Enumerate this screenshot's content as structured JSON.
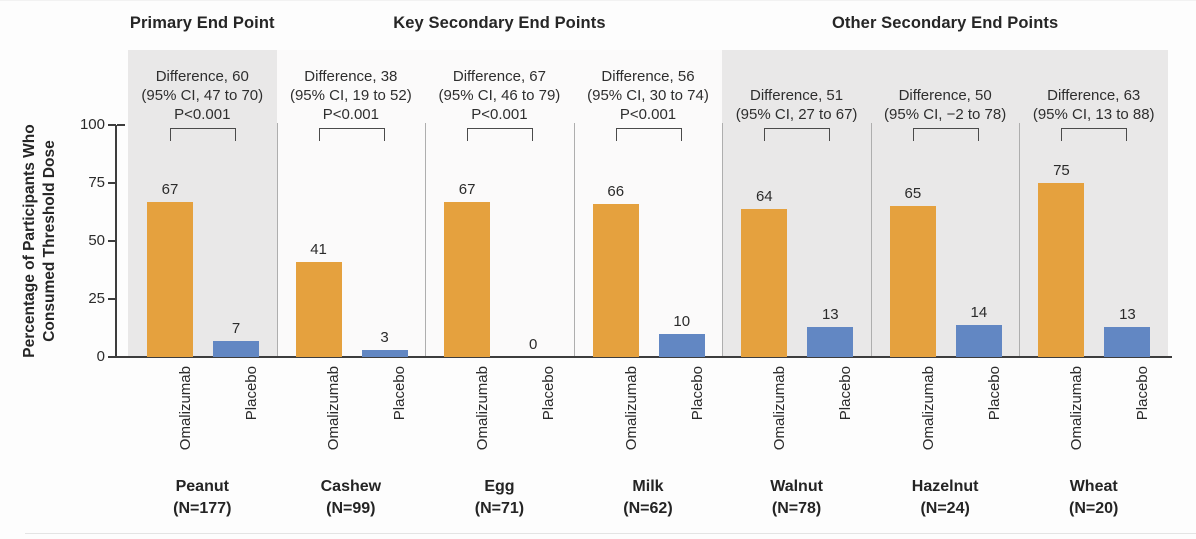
{
  "chart_data": {
    "type": "bar",
    "ylabel_lines": [
      "Percentage of Participants Who",
      "Consumed Threshold Dose"
    ],
    "ylabel": "Percentage of Participants Who Consumed Threshold Dose",
    "ylim": [
      0,
      100
    ],
    "yticks": [
      0,
      25,
      50,
      75,
      100
    ],
    "series_labels": [
      "Omalizumab",
      "Placebo"
    ],
    "colors": {
      "omalizumab": "#E5A13E",
      "placebo": "#6287C3",
      "shaded_bg": "#E9E8E8",
      "light_bg": "#FBFAFA",
      "axis": "#3D3D3D"
    },
    "sections": [
      {
        "label": "Primary End Point",
        "shaded": true,
        "panels": [
          {
            "food": "Peanut",
            "n_label": "(N=177)",
            "values": [
              67,
              7
            ],
            "difference_lines": [
              "Difference, 60",
              "(95% CI, 47 to 70)",
              "P<0.001"
            ]
          }
        ]
      },
      {
        "label": "Key Secondary End Points",
        "shaded": false,
        "panels": [
          {
            "food": "Cashew",
            "n_label": "(N=99)",
            "values": [
              41,
              3
            ],
            "difference_lines": [
              "Difference, 38",
              "(95% CI, 19 to 52)",
              "P<0.001"
            ]
          },
          {
            "food": "Egg",
            "n_label": "(N=71)",
            "values": [
              67,
              0
            ],
            "difference_lines": [
              "Difference, 67",
              "(95% CI, 46 to 79)",
              "P<0.001"
            ]
          },
          {
            "food": "Milk",
            "n_label": "(N=62)",
            "values": [
              66,
              10
            ],
            "difference_lines": [
              "Difference, 56",
              "(95% CI, 30 to 74)",
              "P<0.001"
            ]
          }
        ]
      },
      {
        "label": "Other Secondary End Points",
        "shaded": true,
        "panels": [
          {
            "food": "Walnut",
            "n_label": "(N=78)",
            "values": [
              64,
              13
            ],
            "difference_lines": [
              "Difference, 51",
              "(95% CI, 27 to 67)"
            ]
          },
          {
            "food": "Hazelnut",
            "n_label": "(N=24)",
            "values": [
              65,
              14
            ],
            "difference_lines": [
              "Difference, 50",
              "(95% CI, −2 to 78)"
            ]
          },
          {
            "food": "Wheat",
            "n_label": "(N=20)",
            "values": [
              75,
              13
            ],
            "difference_lines": [
              "Difference, 63",
              "(95% CI, 13 to 88)"
            ]
          }
        ]
      }
    ]
  }
}
